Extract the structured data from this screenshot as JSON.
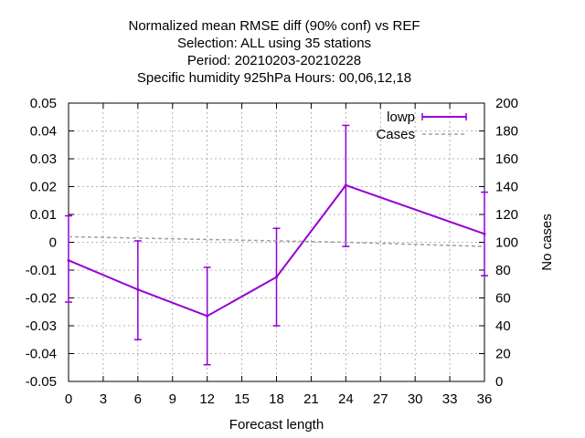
{
  "chart_data": {
    "type": "line",
    "title_lines": [
      "Normalized mean RMSE diff (90% conf) vs REF",
      "Selection: ALL using    35 stations",
      "Period: 20210203-20210228",
      "Specific humidity 925hPa   Hours:  00,06,12,18"
    ],
    "xlabel": "Forecast length",
    "ylabel": "",
    "y2label": "No cases",
    "xlim": [
      0,
      36
    ],
    "ylim": [
      -0.05,
      0.05
    ],
    "y2lim": [
      0,
      200
    ],
    "xticks": [
      0,
      3,
      6,
      9,
      12,
      15,
      18,
      21,
      24,
      27,
      30,
      33,
      36
    ],
    "xtick_labels": [
      "0",
      "3",
      "6",
      "9",
      "12",
      "15",
      "18",
      "21",
      "24",
      "27",
      "30",
      "33",
      "36"
    ],
    "yticks": [
      -0.05,
      -0.04,
      -0.03,
      -0.02,
      -0.01,
      0,
      0.01,
      0.02,
      0.03,
      0.04,
      0.05
    ],
    "ytick_labels": [
      "-0.05",
      "-0.04",
      "-0.03",
      "-0.02",
      "-0.01",
      "0",
      "0.01",
      "0.02",
      "0.03",
      "0.04",
      "0.05"
    ],
    "y2ticks": [
      0,
      20,
      40,
      60,
      80,
      100,
      120,
      140,
      160,
      180,
      200
    ],
    "y2tick_labels": [
      "0",
      "20",
      "40",
      "60",
      "80",
      "100",
      "120",
      "140",
      "160",
      "180",
      "200"
    ],
    "grid": true,
    "legend_position": "top-right",
    "series": [
      {
        "name": "lowp",
        "color": "#9400d3",
        "style": "line-with-errorbars",
        "axis": "left",
        "x": [
          0,
          6,
          12,
          18,
          24,
          36
        ],
        "values": [
          -0.0065,
          -0.017,
          -0.0265,
          -0.0125,
          0.0205,
          0.003
        ],
        "err_low": [
          -0.0215,
          -0.035,
          -0.044,
          -0.03,
          -0.0015,
          -0.012
        ],
        "err_high": [
          0.0095,
          0.0005,
          -0.009,
          0.005,
          0.042,
          0.018
        ]
      },
      {
        "name": "Cases",
        "color": "#a0a0a0",
        "style": "dashed",
        "axis": "right",
        "x": [
          0,
          6,
          12,
          18,
          24,
          36
        ],
        "values": [
          104,
          103,
          102,
          101,
          100,
          97
        ]
      }
    ]
  }
}
